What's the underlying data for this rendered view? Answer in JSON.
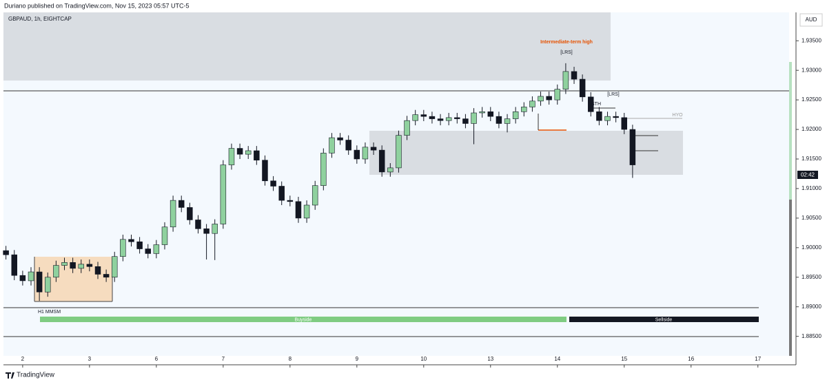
{
  "header": {
    "publisher": "Duriano published on TradingView.com, Nov 15, 2023 05:57 UTC-5",
    "symbol": "GBPAUD, 1h, EIGHTCAP",
    "currency": "AUD",
    "price_tag": "02:42",
    "footer": "TradingView"
  },
  "chart_data": {
    "type": "candlestick",
    "annotations": {
      "intermediate_high": "Intermediate-term high",
      "lrs_1": "[LRS]",
      "lrs_2": "[LRS]",
      "sth": "STH",
      "hyo": "HYO",
      "mmsm": "H1 MMSM",
      "buyside": "Buyside",
      "sellside": "Sellside"
    },
    "x": [
      -6,
      -3,
      0,
      3,
      6,
      9,
      12,
      15,
      18,
      21,
      24,
      27,
      30,
      33,
      36,
      39,
      42,
      45,
      48,
      51,
      54,
      57,
      60,
      63,
      66,
      69,
      72,
      75,
      78,
      81,
      84,
      87,
      90,
      93,
      96,
      99,
      102,
      105,
      108,
      111,
      114,
      117,
      120,
      123,
      126,
      129,
      132,
      135,
      138,
      141,
      144,
      147,
      150,
      153,
      156,
      159,
      162,
      165,
      168,
      171,
      174,
      177,
      180,
      183,
      186,
      189,
      192,
      195,
      198,
      201,
      204,
      207,
      210,
      213,
      216,
      219
    ],
    "open": [
      1.8995,
      1.8988,
      1.8953,
      1.8944,
      1.8959,
      1.8925,
      1.895,
      1.897,
      1.8975,
      1.8965,
      1.8972,
      1.8968,
      1.8955,
      1.895,
      1.8985,
      1.9014,
      1.901,
      1.8998,
      1.899,
      1.9005,
      1.9035,
      1.908,
      1.9068,
      1.9047,
      1.9032,
      1.9024,
      1.904,
      1.914,
      1.9168,
      1.9158,
      1.9164,
      1.9148,
      1.9113,
      1.9104,
      1.908,
      1.9078,
      1.905,
      1.9072,
      1.9105,
      1.916,
      1.9186,
      1.9182,
      1.9165,
      1.915,
      1.917,
      1.9165,
      1.9128,
      1.9135,
      1.919,
      1.9215,
      1.9225,
      1.9222,
      1.9218,
      1.9215,
      1.922,
      1.9218,
      1.921,
      1.9228,
      1.923,
      1.9222,
      1.921,
      1.9218,
      1.923,
      1.9238,
      1.9248,
      1.9256,
      1.925,
      1.9268,
      1.9298,
      1.9285,
      1.9255,
      1.923,
      1.9215,
      1.9222,
      1.922,
      1.92
    ],
    "high": [
      1.9003,
      1.8996,
      1.8961,
      1.8967,
      1.8967,
      1.8958,
      1.8978,
      1.8983,
      1.8983,
      1.898,
      1.898,
      1.8976,
      1.8963,
      1.8993,
      1.9022,
      1.9022,
      1.9018,
      1.9006,
      1.9013,
      1.9043,
      1.9088,
      1.9088,
      1.9076,
      1.9055,
      1.904,
      1.9048,
      1.9148,
      1.9176,
      1.9176,
      1.9172,
      1.9172,
      1.9156,
      1.9121,
      1.9112,
      1.9088,
      1.9086,
      1.908,
      1.9113,
      1.9168,
      1.9194,
      1.9194,
      1.919,
      1.9173,
      1.9178,
      1.9178,
      1.9173,
      1.9143,
      1.9198,
      1.9223,
      1.9233,
      1.9233,
      1.923,
      1.9226,
      1.9228,
      1.9228,
      1.9226,
      1.9236,
      1.9238,
      1.9238,
      1.923,
      1.9226,
      1.9238,
      1.9246,
      1.9256,
      1.9264,
      1.9264,
      1.9276,
      1.9312,
      1.9306,
      1.9293,
      1.9263,
      1.9238,
      1.923,
      1.923,
      1.9228,
      1.9208
    ],
    "low": [
      1.898,
      1.8945,
      1.8936,
      1.8936,
      1.891,
      1.8917,
      1.8942,
      1.8962,
      1.8957,
      1.8957,
      1.896,
      1.8947,
      1.8942,
      1.8942,
      1.8977,
      1.9002,
      1.899,
      1.8982,
      1.8982,
      1.8997,
      1.9027,
      1.906,
      1.9039,
      1.9024,
      1.898,
      1.8979,
      1.9032,
      1.9132,
      1.915,
      1.915,
      1.914,
      1.9105,
      1.9096,
      1.9072,
      1.907,
      1.9042,
      1.9042,
      1.9064,
      1.9097,
      1.9152,
      1.9174,
      1.9157,
      1.9142,
      1.9142,
      1.9157,
      1.912,
      1.912,
      1.9127,
      1.9182,
      1.9207,
      1.9214,
      1.921,
      1.9207,
      1.9207,
      1.921,
      1.9202,
      1.9175,
      1.922,
      1.9214,
      1.9202,
      1.9195,
      1.921,
      1.9222,
      1.923,
      1.924,
      1.9242,
      1.9242,
      1.926,
      1.9277,
      1.9247,
      1.9222,
      1.9207,
      1.9207,
      1.9212,
      1.9192,
      1.9118
    ],
    "close": [
      1.8988,
      1.8953,
      1.8944,
      1.8959,
      1.8925,
      1.895,
      1.897,
      1.8975,
      1.8965,
      1.8972,
      1.8968,
      1.8955,
      1.895,
      1.8985,
      1.9014,
      1.901,
      1.8998,
      1.899,
      1.9005,
      1.9035,
      1.908,
      1.9068,
      1.9047,
      1.9032,
      1.9024,
      1.904,
      1.914,
      1.9168,
      1.9158,
      1.9164,
      1.9148,
      1.9113,
      1.9104,
      1.908,
      1.9078,
      1.905,
      1.9072,
      1.9105,
      1.916,
      1.9186,
      1.9182,
      1.9165,
      1.915,
      1.917,
      1.9165,
      1.9128,
      1.9135,
      1.919,
      1.9215,
      1.9225,
      1.9222,
      1.9218,
      1.9215,
      1.922,
      1.9218,
      1.921,
      1.9228,
      1.923,
      1.9222,
      1.921,
      1.9218,
      1.923,
      1.9238,
      1.9248,
      1.9256,
      1.925,
      1.9268,
      1.9298,
      1.9285,
      1.9255,
      1.923,
      1.9215,
      1.9222,
      1.922,
      1.92,
      1.914
    ],
    "up_color": "#8fd19e",
    "down_color": "#131722",
    "xlim": [
      -6.9,
      275.2
    ],
    "xticks": [
      {
        "value": 0,
        "label": "2"
      },
      {
        "value": 24,
        "label": "3"
      },
      {
        "value": 48,
        "label": "6"
      },
      {
        "value": 72,
        "label": "7"
      },
      {
        "value": 96,
        "label": "8"
      },
      {
        "value": 120,
        "label": "9"
      },
      {
        "value": 144,
        "label": "10"
      },
      {
        "value": 168,
        "label": "13"
      },
      {
        "value": 192,
        "label": "14"
      },
      {
        "value": 216,
        "label": "15"
      },
      {
        "value": 240,
        "label": "16"
      },
      {
        "value": 264,
        "label": "17"
      }
    ],
    "ylim": [
      1.8817,
      1.9398
    ],
    "yticks": [
      {
        "value": 1.885,
        "label": "1.88500"
      },
      {
        "value": 1.89,
        "label": "1.89000"
      },
      {
        "value": 1.895,
        "label": "1.89500"
      },
      {
        "value": 1.9,
        "label": "1.90000"
      },
      {
        "value": 1.905,
        "label": "1.90500"
      },
      {
        "value": 1.91,
        "label": "1.91000"
      },
      {
        "value": 1.915,
        "label": "1.91500"
      },
      {
        "value": 1.92,
        "label": "1.92000"
      },
      {
        "value": 1.925,
        "label": "1.92500"
      },
      {
        "value": 1.93,
        "label": "1.93000"
      },
      {
        "value": 1.935,
        "label": "1.93500"
      }
    ]
  }
}
